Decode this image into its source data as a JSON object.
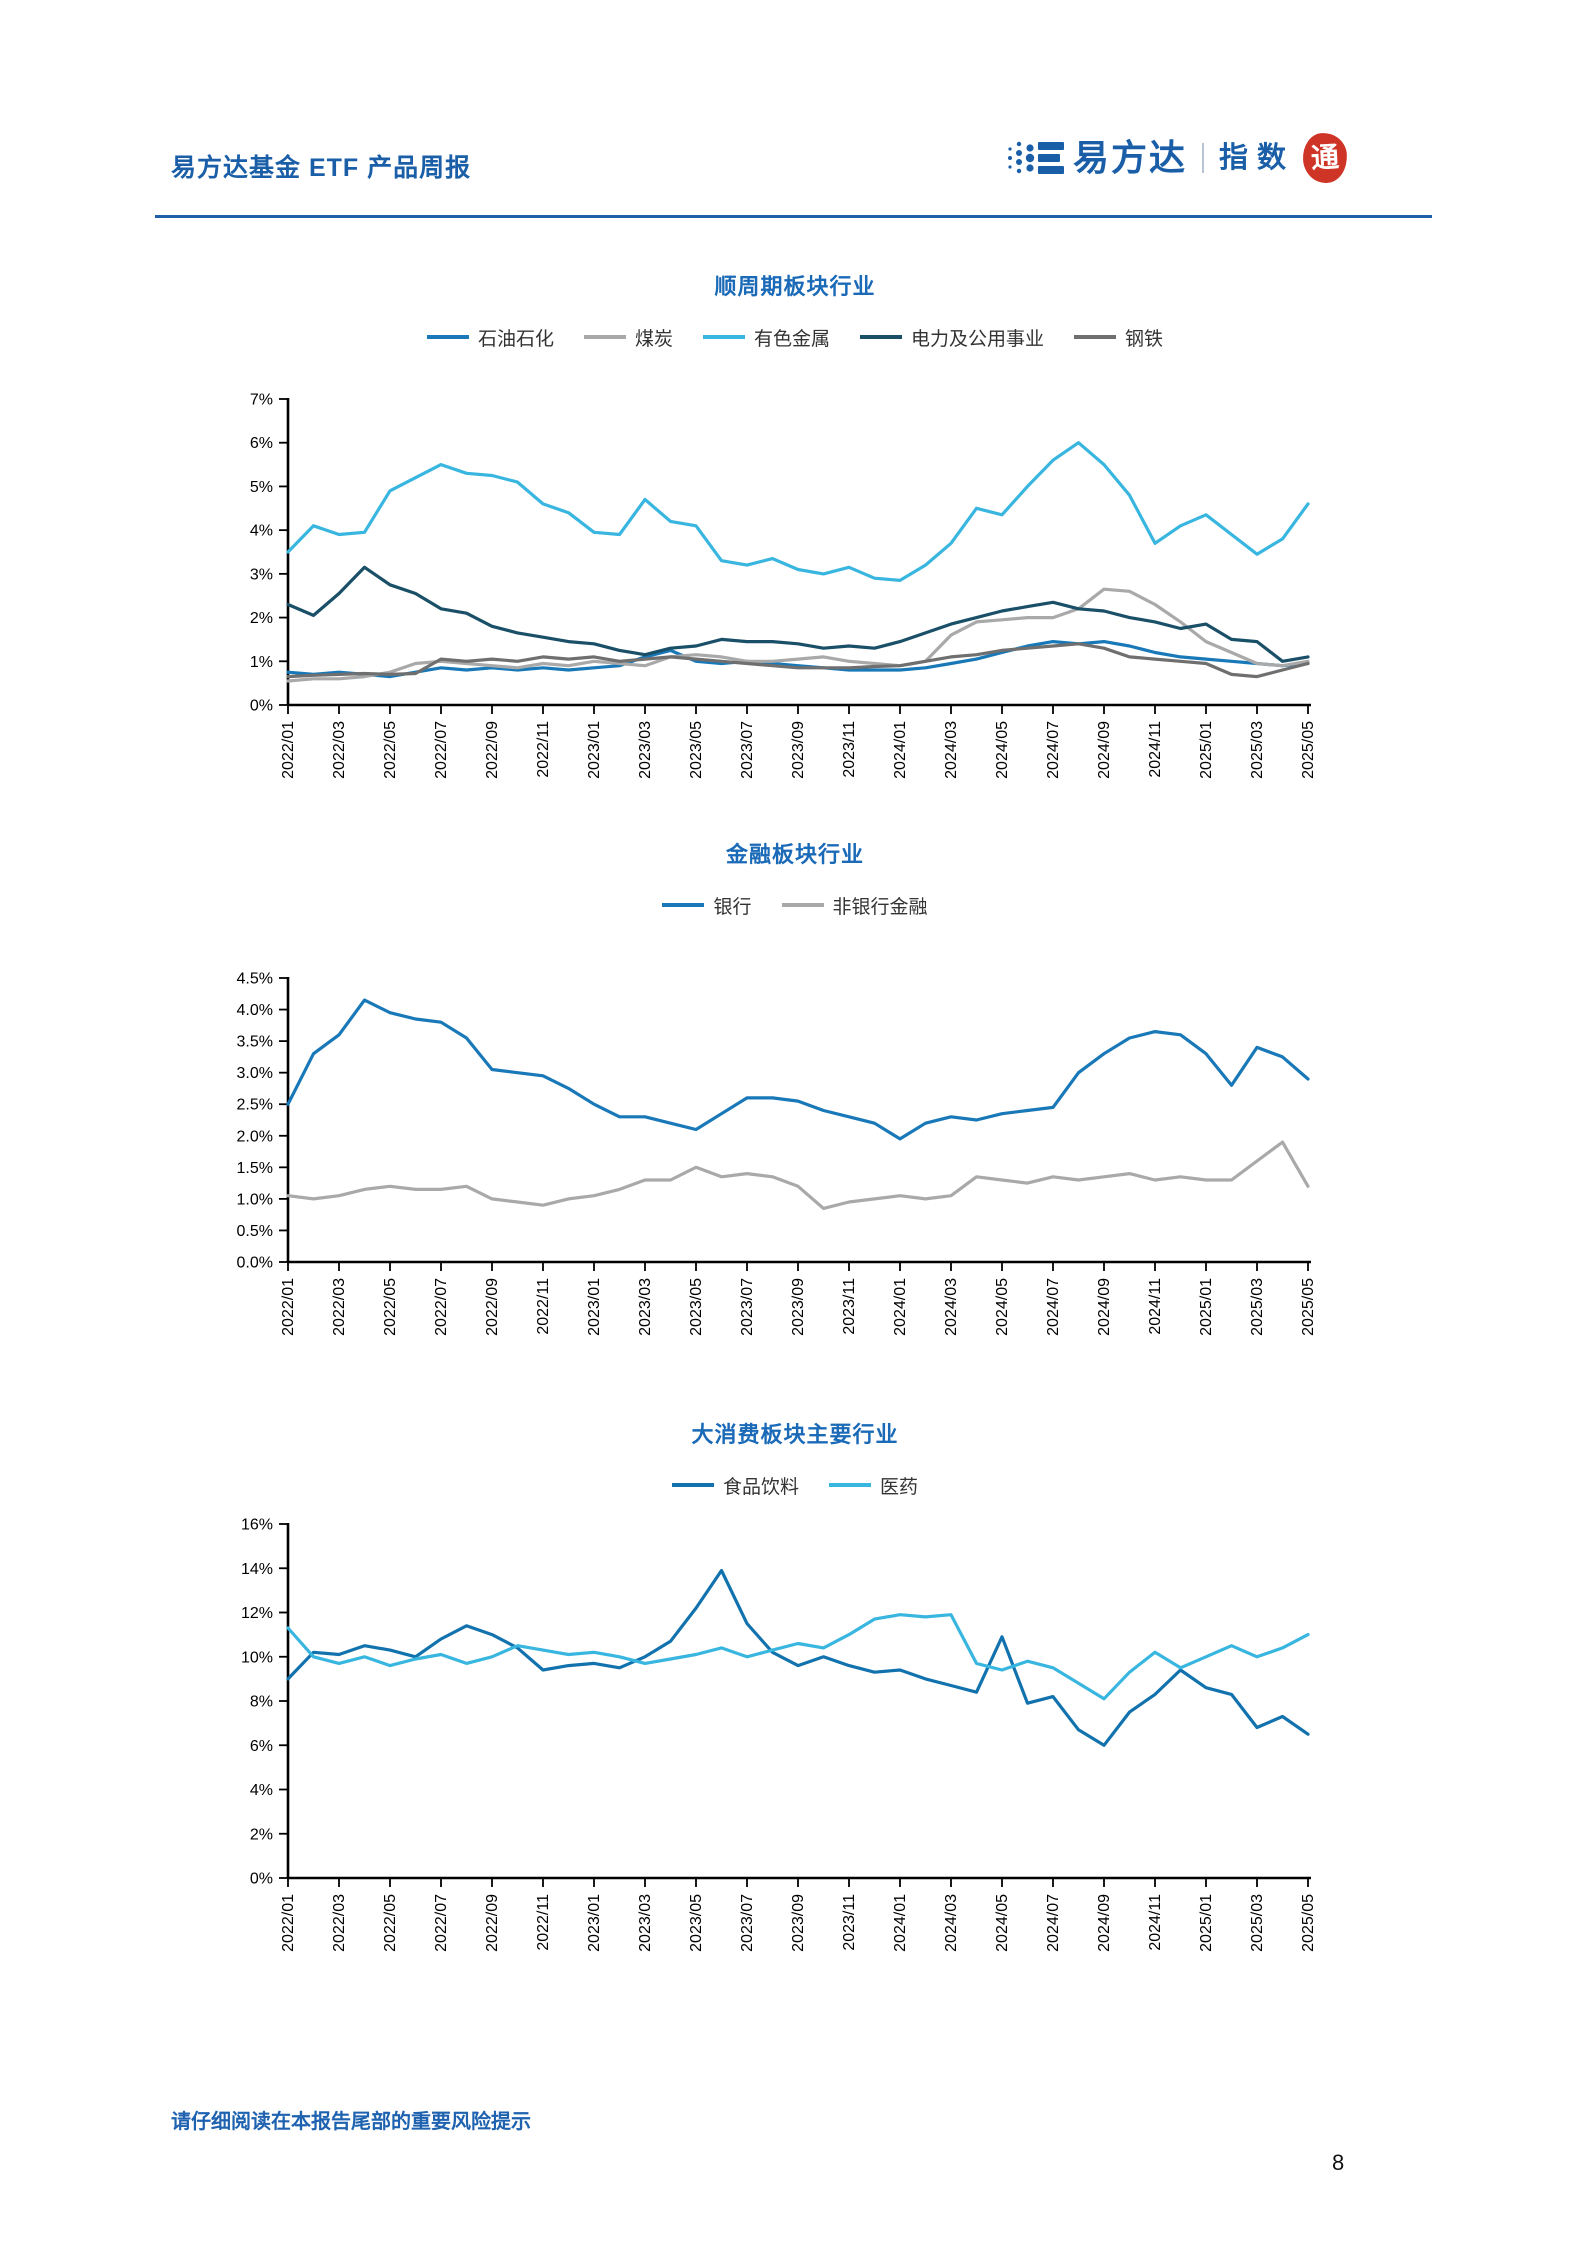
{
  "header": {
    "title": "易方达基金 ETF 产品周报",
    "logo": {
      "brand": "易方达",
      "suffix": "指数",
      "seal": "通"
    }
  },
  "footer": {
    "disclaimer": "请仔细阅读在本报告尾部的重要风险提示"
  },
  "page": {
    "number": "8"
  },
  "colors": {
    "header_blue": "#1b5ea8",
    "title_blue": "#1a6ab8",
    "seal_red": "#cf3527",
    "axis_black": "#000000"
  },
  "chart_data": [
    {
      "type": "line",
      "title": "顺周期板块行业",
      "legend_position": "top",
      "grid": false,
      "x_resolution": "monthly 2022/01 - 2025/05",
      "x_ticks": [
        "2022/01",
        "2022/03",
        "2022/05",
        "2022/07",
        "2022/09",
        "2022/11",
        "2023/01",
        "2023/03",
        "2023/05",
        "2023/07",
        "2023/09",
        "2023/11",
        "2024/01",
        "2024/03",
        "2024/05",
        "2024/07",
        "2024/09",
        "2024/11",
        "2025/01",
        "2025/03",
        "2025/05"
      ],
      "ylim": [
        0,
        7
      ],
      "y_ticks": [
        "0%",
        "1%",
        "2%",
        "3%",
        "4%",
        "5%",
        "6%",
        "7%"
      ],
      "series": [
        {
          "name": "石油石化",
          "color": "#1878b8",
          "values": [
            0.75,
            0.7,
            0.75,
            0.7,
            0.65,
            0.75,
            0.85,
            0.8,
            0.85,
            0.8,
            0.85,
            0.8,
            0.85,
            0.9,
            1.1,
            1.25,
            1.0,
            0.95,
            1.0,
            0.95,
            0.9,
            0.85,
            0.8,
            0.8,
            0.8,
            0.85,
            0.95,
            1.05,
            1.2,
            1.35,
            1.45,
            1.4,
            1.45,
            1.35,
            1.2,
            1.1,
            1.05,
            1.0,
            0.95,
            0.9,
            0.95
          ]
        },
        {
          "name": "煤炭",
          "color": "#a9a9a9",
          "values": [
            0.55,
            0.6,
            0.6,
            0.65,
            0.75,
            0.95,
            1.0,
            0.95,
            0.9,
            0.85,
            0.95,
            0.9,
            1.0,
            0.95,
            0.9,
            1.1,
            1.15,
            1.1,
            1.0,
            1.0,
            1.05,
            1.1,
            1.0,
            0.95,
            0.9,
            1.0,
            1.6,
            1.9,
            1.95,
            2.0,
            2.0,
            2.2,
            2.65,
            2.6,
            2.3,
            1.9,
            1.45,
            1.2,
            0.95,
            0.9,
            1.0
          ]
        },
        {
          "name": "有色金属",
          "color": "#38b6e0",
          "values": [
            3.5,
            4.1,
            3.9,
            3.95,
            4.9,
            5.2,
            5.5,
            5.3,
            5.25,
            5.1,
            4.6,
            4.4,
            3.95,
            3.9,
            4.7,
            4.2,
            4.1,
            3.3,
            3.2,
            3.35,
            3.1,
            3.0,
            3.15,
            2.9,
            2.85,
            3.2,
            3.7,
            4.5,
            4.35,
            5.0,
            5.6,
            6.0,
            5.5,
            4.8,
            3.7,
            4.1,
            4.35,
            3.9,
            3.45,
            3.8,
            4.6
          ]
        },
        {
          "name": "电力及公用事业",
          "color": "#1a4f68",
          "values": [
            2.3,
            2.05,
            2.55,
            3.15,
            2.75,
            2.55,
            2.2,
            2.1,
            1.8,
            1.65,
            1.55,
            1.45,
            1.4,
            1.25,
            1.15,
            1.3,
            1.35,
            1.5,
            1.45,
            1.45,
            1.4,
            1.3,
            1.35,
            1.3,
            1.45,
            1.65,
            1.85,
            2.0,
            2.15,
            2.25,
            2.35,
            2.2,
            2.15,
            2.0,
            1.9,
            1.75,
            1.85,
            1.5,
            1.45,
            1.0,
            1.1
          ]
        },
        {
          "name": "钢铁",
          "color": "#6f6f6f",
          "values": [
            0.65,
            0.68,
            0.7,
            0.72,
            0.7,
            0.72,
            1.05,
            1.0,
            1.05,
            1.0,
            1.1,
            1.05,
            1.1,
            1.0,
            1.05,
            1.1,
            1.05,
            1.0,
            0.95,
            0.9,
            0.85,
            0.85,
            0.85,
            0.88,
            0.9,
            1.0,
            1.1,
            1.15,
            1.25,
            1.3,
            1.35,
            1.4,
            1.3,
            1.1,
            1.05,
            1.0,
            0.95,
            0.7,
            0.65,
            0.8,
            0.95
          ]
        }
      ]
    },
    {
      "type": "line",
      "title": "金融板块行业",
      "legend_position": "top",
      "grid": false,
      "x_resolution": "monthly 2022/01 - 2025/05",
      "x_ticks": [
        "2022/01",
        "2022/03",
        "2022/05",
        "2022/07",
        "2022/09",
        "2022/11",
        "2023/01",
        "2023/03",
        "2023/05",
        "2023/07",
        "2023/09",
        "2023/11",
        "2024/01",
        "2024/03",
        "2024/05",
        "2024/07",
        "2024/09",
        "2024/11",
        "2025/01",
        "2025/03",
        "2025/05"
      ],
      "ylim": [
        0,
        4.5
      ],
      "y_ticks": [
        "0.0%",
        "0.5%",
        "1.0%",
        "1.5%",
        "2.0%",
        "2.5%",
        "3.0%",
        "3.5%",
        "4.0%",
        "4.5%"
      ],
      "series": [
        {
          "name": "银行",
          "color": "#1878b8",
          "values": [
            2.5,
            3.3,
            3.6,
            4.15,
            3.95,
            3.85,
            3.8,
            3.55,
            3.05,
            3.0,
            2.95,
            2.75,
            2.5,
            2.3,
            2.3,
            2.2,
            2.1,
            2.35,
            2.6,
            2.6,
            2.55,
            2.4,
            2.3,
            2.2,
            1.95,
            2.2,
            2.3,
            2.25,
            2.35,
            2.4,
            2.45,
            3.0,
            3.3,
            3.55,
            3.65,
            3.6,
            3.3,
            2.8,
            3.4,
            3.25,
            2.9
          ]
        },
        {
          "name": "非银行金融",
          "color": "#a9a9a9",
          "values": [
            1.05,
            1.0,
            1.05,
            1.15,
            1.2,
            1.15,
            1.15,
            1.2,
            1.0,
            0.95,
            0.9,
            1.0,
            1.05,
            1.15,
            1.3,
            1.3,
            1.5,
            1.35,
            1.4,
            1.35,
            1.2,
            0.85,
            0.95,
            1.0,
            1.05,
            1.0,
            1.05,
            1.35,
            1.3,
            1.25,
            1.35,
            1.3,
            1.35,
            1.4,
            1.3,
            1.35,
            1.3,
            1.3,
            1.6,
            1.9,
            1.2
          ]
        }
      ]
    },
    {
      "type": "line",
      "title": "大消费板块主要行业",
      "legend_position": "top",
      "grid": false,
      "x_resolution": "monthly 2022/01 - 2025/05",
      "x_ticks": [
        "2022/01",
        "2022/03",
        "2022/05",
        "2022/07",
        "2022/09",
        "2022/11",
        "2023/01",
        "2023/03",
        "2023/05",
        "2023/07",
        "2023/09",
        "2023/11",
        "2024/01",
        "2024/03",
        "2024/05",
        "2024/07",
        "2024/09",
        "2024/11",
        "2025/01",
        "2025/03",
        "2025/05"
      ],
      "ylim": [
        0,
        16
      ],
      "y_ticks": [
        "0%",
        "2%",
        "4%",
        "6%",
        "8%",
        "10%",
        "12%",
        "14%",
        "16%"
      ],
      "series": [
        {
          "name": "食品饮料",
          "color": "#1172ae",
          "values": [
            9.0,
            10.2,
            10.1,
            10.5,
            10.3,
            10.0,
            10.8,
            11.4,
            11.0,
            10.4,
            9.4,
            9.6,
            9.7,
            9.5,
            10.0,
            10.7,
            12.2,
            13.9,
            11.5,
            10.2,
            9.6,
            10.0,
            9.6,
            9.3,
            9.4,
            9.0,
            8.7,
            8.4,
            10.9,
            7.9,
            8.2,
            6.7,
            6.0,
            7.5,
            8.3,
            9.4,
            8.6,
            8.3,
            6.8,
            7.3,
            6.5
          ]
        },
        {
          "name": "医药",
          "color": "#38b6e0",
          "values": [
            11.3,
            10.0,
            9.7,
            10.0,
            9.6,
            9.9,
            10.1,
            9.7,
            10.0,
            10.5,
            10.3,
            10.1,
            10.2,
            10.0,
            9.7,
            9.9,
            10.1,
            10.4,
            10.0,
            10.3,
            10.6,
            10.4,
            11.0,
            11.7,
            11.9,
            11.8,
            11.9,
            9.7,
            9.4,
            9.8,
            9.5,
            8.8,
            8.1,
            9.3,
            10.2,
            9.5,
            10.0,
            10.5,
            10.0,
            10.4,
            11.0
          ]
        }
      ]
    }
  ]
}
